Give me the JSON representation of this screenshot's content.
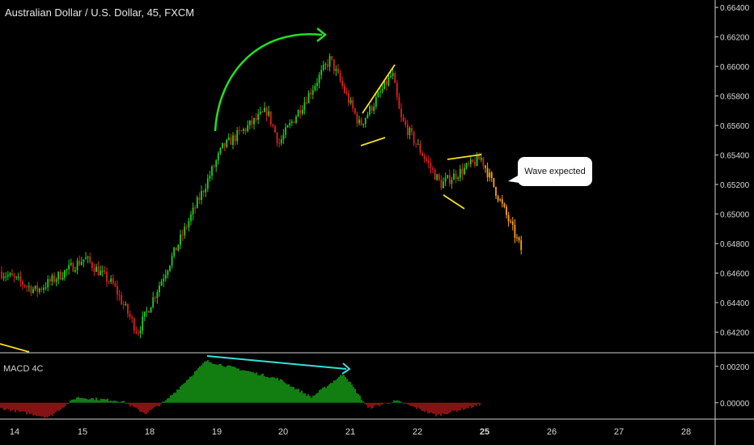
{
  "chart_data": [
    {
      "type": "candlestick",
      "title": "Australian Dollar / U.S. Dollar, 45, FXCM",
      "x_ticks": [
        "14",
        "15",
        "18",
        "19",
        "20",
        "21",
        "22",
        "25",
        "26",
        "27",
        "28"
      ],
      "y_ticks": [
        "0.66400",
        "0.66200",
        "0.66000",
        "0.65800",
        "0.65600",
        "0.65400",
        "0.65200",
        "0.65000",
        "0.64800",
        "0.64600",
        "0.64400",
        "0.64200"
      ],
      "ylim": [
        0.6406,
        0.6645
      ],
      "annotation": "Wave expected",
      "approx_close_path": [
        {
          "x": "14",
          "y": 0.6461
        },
        {
          "x": "15",
          "y": 0.6448
        },
        {
          "x": "15",
          "y": 0.647
        },
        {
          "x": "18",
          "y": 0.6452
        },
        {
          "x": "18",
          "y": 0.642
        },
        {
          "x": "19",
          "y": 0.6515
        },
        {
          "x": "19",
          "y": 0.6545
        },
        {
          "x": "20",
          "y": 0.657
        },
        {
          "x": "20",
          "y": 0.6548
        },
        {
          "x": "21",
          "y": 0.6605
        },
        {
          "x": "21",
          "y": 0.656
        },
        {
          "x": "22",
          "y": 0.6595
        },
        {
          "x": "22",
          "y": 0.6565
        },
        {
          "x": "22",
          "y": 0.652
        },
        {
          "x": "25",
          "y": 0.6538
        },
        {
          "x": "25",
          "y": 0.6475
        }
      ],
      "colors": {
        "up": "#1fd11f",
        "down": "#e02020",
        "projection": "#ff9f1a",
        "background": "#000000"
      }
    },
    {
      "type": "histogram",
      "title": "MACD 4C",
      "y_ticks": [
        "0.00200",
        "0.00000"
      ],
      "ylim": [
        -0.0009,
        0.0027
      ],
      "colors": {
        "positive": "#1fd11f",
        "negative": "#e02020"
      }
    }
  ]
}
